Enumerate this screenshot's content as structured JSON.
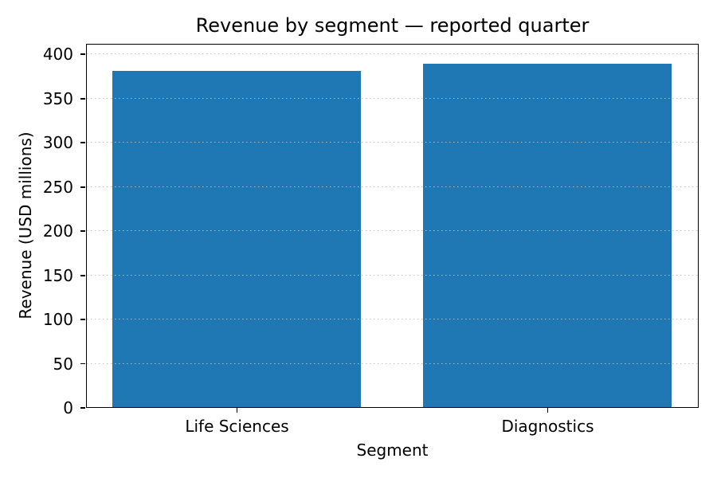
{
  "chart_data": {
    "type": "bar",
    "title": "Revenue by segment — reported quarter",
    "xlabel": "Segment",
    "ylabel": "Revenue (USD millions)",
    "categories": [
      "Life Sciences",
      "Diagnostics"
    ],
    "values": [
      382,
      390
    ],
    "yticks": [
      0,
      50,
      100,
      150,
      200,
      250,
      300,
      350,
      400
    ],
    "ylim": [
      0,
      412
    ],
    "xlim": [
      -0.486,
      1.486
    ],
    "bar_width_fraction": 0.8,
    "bar_color": "#1f77b4",
    "grid": {
      "axis": "y",
      "linestyle": "dotted",
      "color": "#c0c0c0"
    },
    "legend_position": "none",
    "background_color": "#ffffff",
    "text_color": "#000000"
  }
}
